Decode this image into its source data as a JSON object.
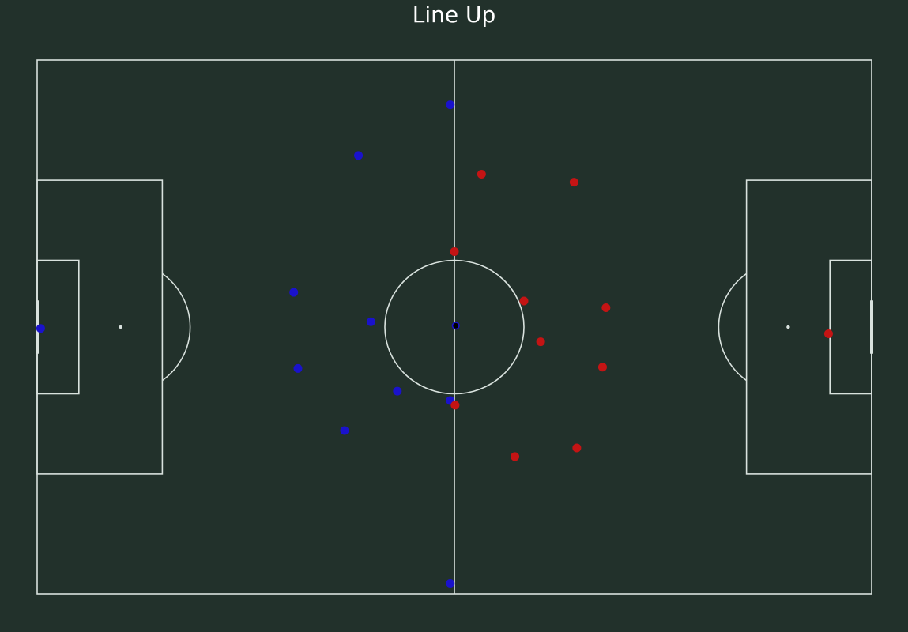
{
  "title": "Line Up",
  "colors": {
    "background": "#22312b",
    "lines": "#d9e2de",
    "home": "#1a12cc",
    "away": "#c41414",
    "ball": "#000000"
  },
  "pitch": {
    "length": 120,
    "width": 80,
    "penalty_area_depth": 18,
    "penalty_area_width": 44,
    "six_yard_depth": 6,
    "six_yard_width": 20,
    "penalty_spot": 12,
    "center_circle_radius": 10,
    "goal_width": 8
  },
  "teams": [
    {
      "side": "home",
      "color": "#1a12cc",
      "players": [
        {
          "x": 0.5,
          "y": 40.2
        },
        {
          "x": 59.4,
          "y": 6.7
        },
        {
          "x": 46.2,
          "y": 14.3
        },
        {
          "x": 36.9,
          "y": 34.8
        },
        {
          "x": 48.0,
          "y": 39.2
        },
        {
          "x": 37.5,
          "y": 46.2
        },
        {
          "x": 51.8,
          "y": 49.6
        },
        {
          "x": 59.4,
          "y": 51.0
        },
        {
          "x": 44.2,
          "y": 55.5
        },
        {
          "x": 59.4,
          "y": 78.4
        }
      ]
    },
    {
      "side": "away",
      "color": "#c41414",
      "players": [
        {
          "x": 113.8,
          "y": 41.0
        },
        {
          "x": 63.9,
          "y": 17.1
        },
        {
          "x": 77.2,
          "y": 18.3
        },
        {
          "x": 60.0,
          "y": 28.7
        },
        {
          "x": 70.0,
          "y": 36.1
        },
        {
          "x": 81.8,
          "y": 37.1
        },
        {
          "x": 72.4,
          "y": 42.2
        },
        {
          "x": 81.3,
          "y": 46.0
        },
        {
          "x": 60.1,
          "y": 51.7
        },
        {
          "x": 77.6,
          "y": 58.1
        },
        {
          "x": 68.7,
          "y": 59.4
        }
      ]
    }
  ],
  "ball": {
    "x": 60.2,
    "y": 39.8
  }
}
